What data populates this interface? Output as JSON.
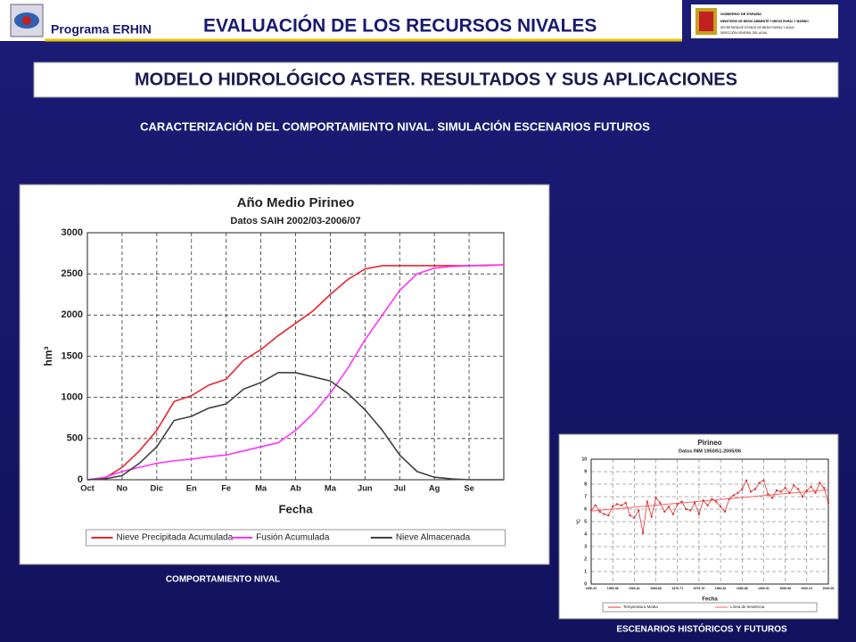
{
  "header": {
    "program": "Programa ERHIN",
    "title": "EVALUACIÓN DE LOS RECURSOS NIVALES",
    "logo": [
      "GOBIERNO DE ESPAÑA",
      "MINISTERIO DE MEDIO AMBIENTE Y MEDIO RURAL Y MARINO",
      "SECRETARÍA DE ESTADO DE MEDIO RURAL Y AGUA",
      "DIRECCIÓN GENERAL DEL AGUA"
    ]
  },
  "banner": "MODELO HIDROLÓGICO ASTER. RESULTADOS Y SUS APLICACIONES",
  "subtitle": "CARACTERIZACIÓN DEL COMPORTAMIENTO NIVAL. SIMULACIÓN ESCENARIOS FUTUROS",
  "captions": [
    "COMPORTAMIENTO NIVAL",
    "ESCENARIOS HISTÓRICOS Y FUTUROS"
  ],
  "chart_data": [
    {
      "type": "line",
      "title": "Año Medio Pirineo",
      "subtitle": "Datos SAIH 2002/03-2006/07",
      "x_label": "Fecha",
      "y_label": "hm³",
      "grid": true,
      "x": [
        0,
        0.5,
        1,
        1.5,
        2,
        2.5,
        3,
        3.5,
        4,
        4.5,
        5,
        5.5,
        6,
        6.5,
        7,
        7.5,
        8,
        8.5,
        9,
        9.5,
        10,
        10.5,
        11,
        11.5,
        12
      ],
      "xlim": [
        0,
        12
      ],
      "xticks": [
        {
          "value": 0,
          "label": "Oct"
        },
        {
          "value": 1,
          "label": "No"
        },
        {
          "value": 2,
          "label": "Dic"
        },
        {
          "value": 3,
          "label": "En"
        },
        {
          "value": 4,
          "label": "Fe"
        },
        {
          "value": 5,
          "label": "Ma"
        },
        {
          "value": 6,
          "label": "Ab"
        },
        {
          "value": 7,
          "label": "Ma"
        },
        {
          "value": 8,
          "label": "Jun"
        },
        {
          "value": 9,
          "label": "Jul"
        },
        {
          "value": 10,
          "label": "Ag"
        },
        {
          "value": 11,
          "label": "Se"
        }
      ],
      "ylim": [
        0,
        3000
      ],
      "yticks": [
        0,
        500,
        1000,
        1500,
        2000,
        2500,
        3000
      ],
      "series": [
        {
          "name": "Nieve Precipitada Acumulada",
          "color": "#e8262b",
          "values": [
            0,
            20,
            150,
            350,
            600,
            950,
            1020,
            1150,
            1220,
            1450,
            1580,
            1750,
            1900,
            2050,
            2250,
            2430,
            2560,
            2600,
            2600,
            2600,
            2600,
            2600,
            2600,
            2605,
            2610
          ]
        },
        {
          "name": "Fusión Acumulada",
          "color": "#ff33ff",
          "values": [
            0,
            30,
            100,
            150,
            200,
            230,
            250,
            280,
            300,
            350,
            400,
            450,
            600,
            800,
            1050,
            1350,
            1700,
            2000,
            2300,
            2500,
            2570,
            2590,
            2600,
            2600,
            2610
          ]
        },
        {
          "name": "Nieve Almacenada",
          "color": "#404040",
          "values": [
            0,
            10,
            50,
            200,
            400,
            720,
            770,
            870,
            920,
            1100,
            1180,
            1300,
            1300,
            1250,
            1200,
            1050,
            850,
            600,
            300,
            100,
            30,
            10,
            0,
            0,
            0
          ]
        }
      ]
    },
    {
      "type": "line",
      "title": "Pirineo",
      "subtitle": "Datos INM 1950/51-2005/06",
      "x_label": "Fecha",
      "y_label": "ºC",
      "grid": true,
      "categories": [
        "1950-51",
        null,
        null,
        null,
        null,
        "1955-56",
        null,
        null,
        null,
        null,
        "1960-61",
        null,
        null,
        null,
        null,
        "1965-66",
        null,
        null,
        null,
        null,
        "1970-71",
        null,
        null,
        null,
        null,
        "1975-76",
        null,
        null,
        null,
        null,
        "1980-81",
        null,
        null,
        null,
        null,
        "1985-86",
        null,
        null,
        null,
        null,
        "1990-91",
        null,
        null,
        null,
        null,
        "1995-96",
        null,
        null,
        null,
        null,
        "2000-01",
        null,
        null,
        null,
        null,
        "2005-06"
      ],
      "ylim": [
        0,
        10
      ],
      "yticks": [
        0,
        1,
        2,
        3,
        4,
        5,
        6,
        7,
        8,
        9,
        10
      ],
      "series": [
        {
          "name": "Temperatura Media",
          "color": "#e03030",
          "values": [
            5.9,
            6.3,
            5.8,
            5.6,
            5.5,
            6.2,
            6.4,
            6.3,
            6.5,
            5.5,
            5.3,
            5.9,
            4.1,
            6.6,
            5.4,
            6.9,
            6.5,
            5.8,
            6.2,
            5.6,
            6.4,
            6.6,
            6.0,
            5.9,
            6.5,
            5.6,
            6.7,
            6.3,
            6.8,
            6.6,
            6.2,
            5.8,
            6.8,
            7.1,
            7.3,
            7.6,
            8.3,
            7.4,
            7.6,
            8.1,
            8.3,
            7.2,
            6.9,
            7.5,
            7.4,
            7.7,
            7.3,
            7.9,
            7.6,
            7.0,
            7.5,
            7.8,
            7.3,
            8.1,
            7.7,
            6.5
          ]
        }
      ],
      "trend": {
        "name": "Línea de tendencia",
        "color": "#ff6060",
        "start": 5.85,
        "end": 7.55
      }
    }
  ]
}
